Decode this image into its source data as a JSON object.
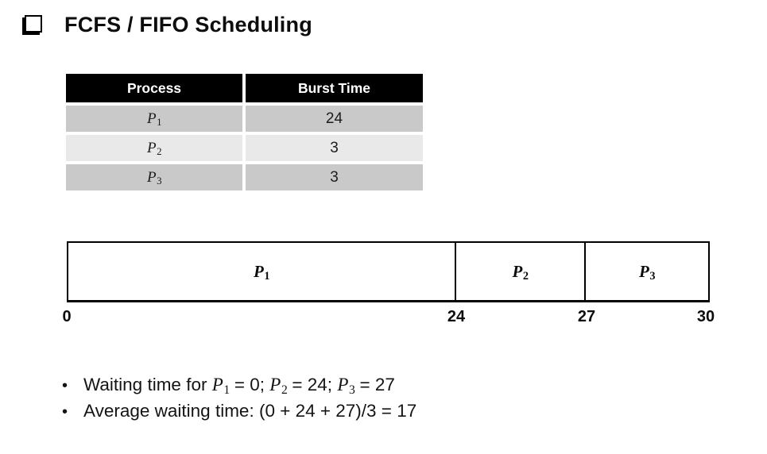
{
  "title": {
    "text": "FCFS / FIFO Scheduling"
  },
  "table": {
    "headers": [
      "Process",
      "Burst Time"
    ],
    "rows": [
      {
        "process": {
          "base": "P",
          "sub": "1"
        },
        "burst_time": "24"
      },
      {
        "process": {
          "base": "P",
          "sub": "2"
        },
        "burst_time": "3"
      },
      {
        "process": {
          "base": "P",
          "sub": "3"
        },
        "burst_time": "3"
      }
    ]
  },
  "gantt": {
    "segments": [
      {
        "label": {
          "base": "P",
          "sub": "1"
        },
        "start": 0,
        "end": 24
      },
      {
        "label": {
          "base": "P",
          "sub": "2"
        },
        "start": 24,
        "end": 27
      },
      {
        "label": {
          "base": "P",
          "sub": "3"
        },
        "start": 27,
        "end": 30
      }
    ],
    "ticks": [
      "0",
      "24",
      "27",
      "30"
    ]
  },
  "bullets": {
    "marker": "•",
    "items": [
      {
        "s0": "Waiting time for ",
        "p1": {
          "base": "P",
          "sub": "1"
        },
        "s1": " = 0; ",
        "p2": {
          "base": "P",
          "sub": "2"
        },
        "s2": " = 24; ",
        "p3": {
          "base": "P",
          "sub": "3"
        },
        "s3": " = 27"
      },
      {
        "s0": "Average waiting time: (0 + 24 + 27)/3 = 17"
      }
    ]
  },
  "colors": {
    "background": "#ffffff",
    "table_header_bg": "#000000",
    "table_header_text": "#ffffff",
    "table_row_dark": "#c9c9c9",
    "table_row_light": "#e9e9e9",
    "ink": "#000000"
  }
}
